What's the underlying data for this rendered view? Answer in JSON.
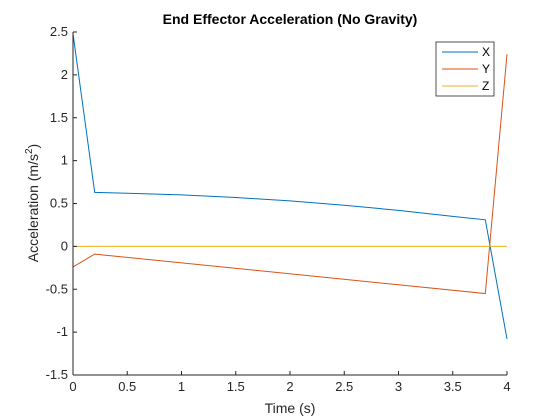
{
  "chart_data": {
    "type": "line",
    "title": "End Effector Acceleration (No Gravity)",
    "xlabel": "Time (s)",
    "ylabel_main": "Acceleration (m/s",
    "ylabel_sup": "2",
    "ylabel_close": ")",
    "xlim": [
      0,
      4
    ],
    "ylim": [
      -1.5,
      2.5
    ],
    "xticks": [
      0,
      0.5,
      1,
      1.5,
      2,
      2.5,
      3,
      3.5,
      4
    ],
    "xtick_labels": [
      "0",
      "0.5",
      "1",
      "1.5",
      "2",
      "2.5",
      "3",
      "3.5",
      "4"
    ],
    "yticks": [
      -1.5,
      -1,
      -0.5,
      0,
      0.5,
      1,
      1.5,
      2,
      2.5
    ],
    "ytick_labels": [
      "-1.5",
      "-1",
      "-0.5",
      "0",
      "0.5",
      "1",
      "1.5",
      "2",
      "2.5"
    ],
    "grid": false,
    "legend_position": "top-right",
    "series": [
      {
        "name": "X",
        "color": "#0072BD",
        "x": [
          0,
          0.2,
          0.5,
          1.0,
          1.5,
          2.0,
          2.5,
          3.0,
          3.5,
          3.8,
          4.0
        ],
        "y": [
          2.48,
          0.63,
          0.62,
          0.6,
          0.57,
          0.53,
          0.48,
          0.42,
          0.35,
          0.31,
          -1.08
        ]
      },
      {
        "name": "Y",
        "color": "#D95319",
        "x": [
          0,
          0.2,
          3.8,
          4.0
        ],
        "y": [
          -0.24,
          -0.09,
          -0.55,
          2.24
        ]
      },
      {
        "name": "Z",
        "color": "#EDB120",
        "x": [
          0,
          4.0
        ],
        "y": [
          0,
          0
        ]
      }
    ]
  }
}
